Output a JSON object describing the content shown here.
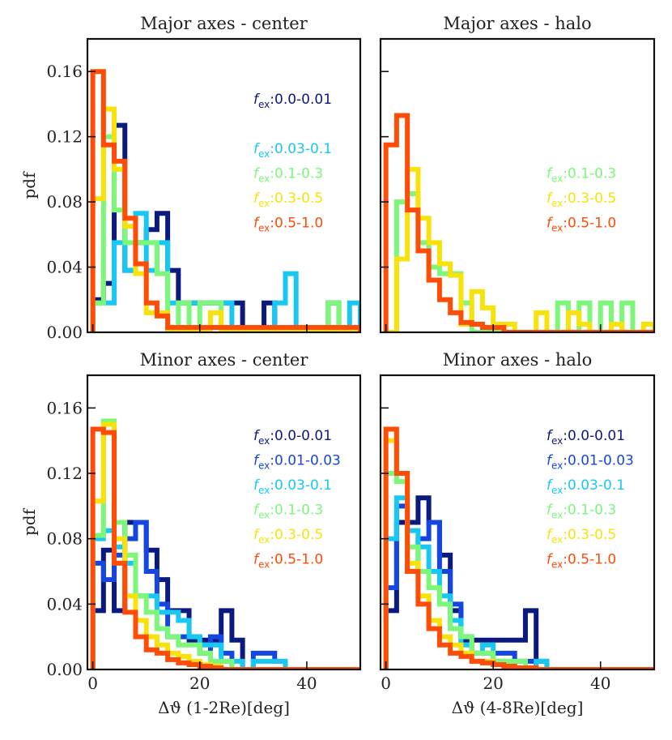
{
  "colors": {
    "0.0-0.01": "#0b1a7e",
    "0.01-0.03": "#1646e0",
    "0.03-0.1": "#19c8f2",
    "0.1-0.3": "#7cf77a",
    "0.3-0.5": "#f7e20c",
    "0.5-1.0": "#ff4c07"
  },
  "chart_data": [
    {
      "type": "histogram",
      "title": "Major axes - center",
      "xlabel": "",
      "ylabel": "pdf",
      "xlim": [
        -1,
        50
      ],
      "ylim": [
        0,
        0.18
      ],
      "bin_edges": [
        0,
        2,
        4,
        6,
        8,
        10,
        12,
        14,
        16,
        18,
        20,
        22,
        24,
        26,
        28,
        30,
        32,
        34,
        36,
        38,
        40,
        42,
        44,
        46,
        48,
        50
      ],
      "series": [
        {
          "name": "0.0-0.01",
          "values": [
            0.02,
            0.03,
            0.127,
            0.038,
            0.055,
            0.063,
            0.073,
            0.038,
            0.018,
            0.018,
            0.018,
            0.018,
            0.018,
            0.018,
            0.0,
            0.0,
            0.018,
            0.0,
            0.0,
            0.0,
            0.0,
            0.0,
            0.018,
            0.0,
            0.0
          ]
        },
        {
          "name": "0.03-0.1",
          "values": [
            0.018,
            0.018,
            0.055,
            0.038,
            0.073,
            0.038,
            0.055,
            0.018,
            0.018,
            0.018,
            0.018,
            0.018,
            0.018,
            0.0,
            0.0,
            0.0,
            0.0,
            0.018,
            0.036,
            0.0,
            0.0,
            0.0,
            0.0,
            0.0,
            0.018
          ]
        },
        {
          "name": "0.1-0.3",
          "values": [
            0.018,
            0.12,
            0.075,
            0.055,
            0.055,
            0.055,
            0.036,
            0.0,
            0.018,
            0.0,
            0.018,
            0.018,
            0.0,
            0.0,
            0.0,
            0.0,
            0.0,
            0.0,
            0.0,
            0.0,
            0.0,
            0.0,
            0.018,
            0.0,
            0.0
          ]
        },
        {
          "name": "0.3-0.5",
          "values": [
            0.082,
            0.137,
            0.1,
            0.065,
            0.036,
            0.012,
            0.012,
            0.0,
            0.0,
            0.0,
            0.0,
            0.012,
            0.0,
            0.0,
            0.0,
            0.0,
            0.0,
            0.0,
            0.0,
            0.0,
            0.0,
            0.0,
            0.0,
            0.0,
            0.0
          ]
        },
        {
          "name": "0.5-1.0",
          "values": [
            0.16,
            0.115,
            0.105,
            0.07,
            0.042,
            0.018,
            0.01,
            0.003,
            0.003,
            0.003,
            0.003,
            0.003,
            0.003,
            0.003,
            0.003,
            0.003,
            0.003,
            0.003,
            0.003,
            0.003,
            0.003,
            0.003,
            0.003,
            0.003,
            0.003
          ]
        }
      ],
      "legend": [
        "0.0-0.01",
        "",
        "0.03-0.1",
        "0.1-0.3",
        "0.3-0.5",
        "0.5-1.0"
      ],
      "legend_position": "top-right"
    },
    {
      "type": "histogram",
      "title": "Major axes - halo",
      "xlabel": "",
      "ylabel": "",
      "xlim": [
        -1,
        50
      ],
      "ylim": [
        0,
        0.18
      ],
      "bin_edges": [
        0,
        2,
        4,
        6,
        8,
        10,
        12,
        14,
        16,
        18,
        20,
        22,
        24,
        26,
        28,
        30,
        32,
        34,
        36,
        38,
        40,
        42,
        44,
        46,
        48,
        50
      ],
      "series": [
        {
          "name": "0.1-0.3",
          "values": [
            0.0,
            0.08,
            0.085,
            0.055,
            0.04,
            0.036,
            0.036,
            0.018,
            0.0,
            0.0,
            0.0,
            0.0,
            0.0,
            0.0,
            0.0,
            0.0,
            0.018,
            0.0,
            0.018,
            0.0,
            0.018,
            0.0,
            0.018,
            0.0,
            0.0
          ]
        },
        {
          "name": "0.3-0.5",
          "values": [
            0.0,
            0.045,
            0.1,
            0.07,
            0.055,
            0.042,
            0.035,
            0.005,
            0.025,
            0.015,
            0.005,
            0.005,
            0.0,
            0.0,
            0.012,
            0.0,
            0.0,
            0.012,
            0.005,
            0.0,
            0.0,
            0.005,
            0.0,
            0.0,
            0.005
          ]
        },
        {
          "name": "0.5-1.0",
          "values": [
            0.115,
            0.133,
            0.075,
            0.05,
            0.032,
            0.02,
            0.012,
            0.006,
            0.005,
            0.003,
            0.003,
            0.0,
            0.0,
            0.0,
            0.0,
            0.0,
            0.0,
            0.0,
            0.0,
            0.0,
            0.0,
            0.0,
            0.0,
            0.0,
            0.0
          ]
        }
      ],
      "legend": [
        "",
        "",
        "",
        "0.1-0.3",
        "0.3-0.5",
        "0.5-1.0"
      ],
      "legend_position": "top-right"
    },
    {
      "type": "histogram",
      "title": "Minor axes - center",
      "xlabel": "Δϑ (1-2Re)[deg]",
      "ylabel": "pdf",
      "xlim": [
        -1,
        50
      ],
      "ylim": [
        0,
        0.18
      ],
      "xticks": [
        0,
        20,
        40
      ],
      "bin_edges": [
        0,
        2,
        4,
        6,
        8,
        10,
        12,
        14,
        16,
        18,
        20,
        22,
        24,
        26,
        28,
        30,
        32,
        34,
        36,
        38,
        40,
        42,
        44,
        46,
        48,
        50
      ],
      "series": [
        {
          "name": "0.0-0.01",
          "values": [
            0.036,
            0.073,
            0.036,
            0.09,
            0.09,
            0.073,
            0.055,
            0.036,
            0.036,
            0.018,
            0.018,
            0.018,
            0.036,
            0.018,
            0.0,
            0.0,
            0.0,
            0.0,
            0.0,
            0.0,
            0.0,
            0.0,
            0.0,
            0.0,
            0.0
          ]
        },
        {
          "name": "0.01-0.03",
          "values": [
            0.065,
            0.055,
            0.07,
            0.08,
            0.09,
            0.06,
            0.04,
            0.02,
            0.02,
            0.02,
            0.01,
            0.02,
            0.01,
            0.0,
            0.0,
            0.01,
            0.01,
            0.005,
            0.0,
            0.0,
            0.0,
            0.0,
            0.0,
            0.0,
            0.0
          ]
        },
        {
          "name": "0.03-0.1",
          "values": [
            0.08,
            0.085,
            0.075,
            0.065,
            0.045,
            0.045,
            0.035,
            0.035,
            0.03,
            0.02,
            0.015,
            0.015,
            0.005,
            0.005,
            0.0,
            0.005,
            0.005,
            0.005,
            0.0,
            0.0,
            0.0,
            0.0,
            0.0,
            0.0,
            0.0
          ]
        },
        {
          "name": "0.1-0.3",
          "values": [
            0.082,
            0.152,
            0.09,
            0.07,
            0.045,
            0.035,
            0.025,
            0.02,
            0.015,
            0.015,
            0.01,
            0.005,
            0.005,
            0.0,
            0.0,
            0.0,
            0.0,
            0.0,
            0.0,
            0.0,
            0.0,
            0.0,
            0.0,
            0.0,
            0.0
          ]
        },
        {
          "name": "0.3-0.5",
          "values": [
            0.103,
            0.15,
            0.08,
            0.045,
            0.03,
            0.02,
            0.015,
            0.01,
            0.008,
            0.005,
            0.003,
            0.002,
            0.0,
            0.0,
            0.0,
            0.0,
            0.0,
            0.0,
            0.0,
            0.0,
            0.0,
            0.0,
            0.0,
            0.0,
            0.0
          ]
        },
        {
          "name": "0.5-1.0",
          "values": [
            0.147,
            0.145,
            0.065,
            0.035,
            0.02,
            0.012,
            0.01,
            0.006,
            0.004,
            0.003,
            0.002,
            0.001,
            0.0,
            0.0,
            0.0,
            0.0,
            0.0,
            0.0,
            0.0,
            0.0,
            0.0,
            0.0,
            0.0,
            0.0,
            0.0
          ]
        }
      ],
      "legend": [
        "0.0-0.01",
        "0.01-0.03",
        "0.03-0.1",
        "0.1-0.3",
        "0.3-0.5",
        "0.5-1.0"
      ],
      "legend_position": "top-right"
    },
    {
      "type": "histogram",
      "title": "Minor axes - halo",
      "xlabel": "Δϑ (4-8Re)[deg]",
      "ylabel": "",
      "xlim": [
        -1,
        50
      ],
      "ylim": [
        0,
        0.18
      ],
      "xticks": [
        0,
        20,
        40
      ],
      "bin_edges": [
        0,
        2,
        4,
        6,
        8,
        10,
        12,
        14,
        16,
        18,
        20,
        22,
        24,
        26,
        28,
        30,
        32,
        34,
        36,
        38,
        40,
        42,
        44,
        46,
        48,
        50
      ],
      "series": [
        {
          "name": "0.0-0.01",
          "values": [
            0.036,
            0.09,
            0.09,
            0.105,
            0.09,
            0.07,
            0.036,
            0.018,
            0.018,
            0.018,
            0.018,
            0.018,
            0.018,
            0.036,
            0.0,
            0.0,
            0.0,
            0.0,
            0.0,
            0.0,
            0.0,
            0.0,
            0.0,
            0.0,
            0.0
          ]
        },
        {
          "name": "0.01-0.03",
          "values": [
            0.05,
            0.1,
            0.06,
            0.08,
            0.09,
            0.06,
            0.04,
            0.02,
            0.01,
            0.01,
            0.01,
            0.01,
            0.005,
            0.005,
            0.005,
            0.0,
            0.0,
            0.0,
            0.0,
            0.0,
            0.0,
            0.0,
            0.0,
            0.0,
            0.0
          ]
        },
        {
          "name": "0.03-0.1",
          "values": [
            0.08,
            0.105,
            0.085,
            0.075,
            0.06,
            0.045,
            0.03,
            0.015,
            0.01,
            0.015,
            0.005,
            0.005,
            0.0,
            0.0,
            0.005,
            0.0,
            0.0,
            0.0,
            0.0,
            0.0,
            0.0,
            0.0,
            0.0,
            0.0,
            0.0
          ]
        },
        {
          "name": "0.1-0.3",
          "values": [
            0.12,
            0.115,
            0.075,
            0.06,
            0.05,
            0.04,
            0.025,
            0.02,
            0.01,
            0.01,
            0.005,
            0.005,
            0.005,
            0.0,
            0.0,
            0.0,
            0.0,
            0.0,
            0.0,
            0.0,
            0.0,
            0.0,
            0.0,
            0.0,
            0.0
          ]
        },
        {
          "name": "0.3-0.5",
          "values": [
            0.14,
            0.12,
            0.065,
            0.045,
            0.03,
            0.02,
            0.015,
            0.01,
            0.005,
            0.005,
            0.003,
            0.002,
            0.0,
            0.0,
            0.0,
            0.0,
            0.0,
            0.0,
            0.0,
            0.0,
            0.0,
            0.0,
            0.0,
            0.0,
            0.0
          ]
        },
        {
          "name": "0.5-1.0",
          "values": [
            0.147,
            0.12,
            0.06,
            0.04,
            0.025,
            0.015,
            0.01,
            0.008,
            0.005,
            0.004,
            0.003,
            0.002,
            0.001,
            0.001,
            0.0,
            0.0,
            0.0,
            0.0,
            0.0,
            0.0,
            0.0,
            0.0,
            0.0,
            0.0,
            0.0
          ]
        }
      ],
      "legend": [
        "0.0-0.01",
        "0.01-0.03",
        "0.03-0.1",
        "0.1-0.3",
        "0.3-0.5",
        "0.5-1.0"
      ],
      "legend_position": "top-right"
    }
  ],
  "yticks": [
    "0.00",
    "0.04",
    "0.08",
    "0.12",
    "0.16"
  ],
  "xticks": [
    "0",
    "20",
    "40"
  ],
  "legend_symbol": "f",
  "legend_sub": "ex"
}
